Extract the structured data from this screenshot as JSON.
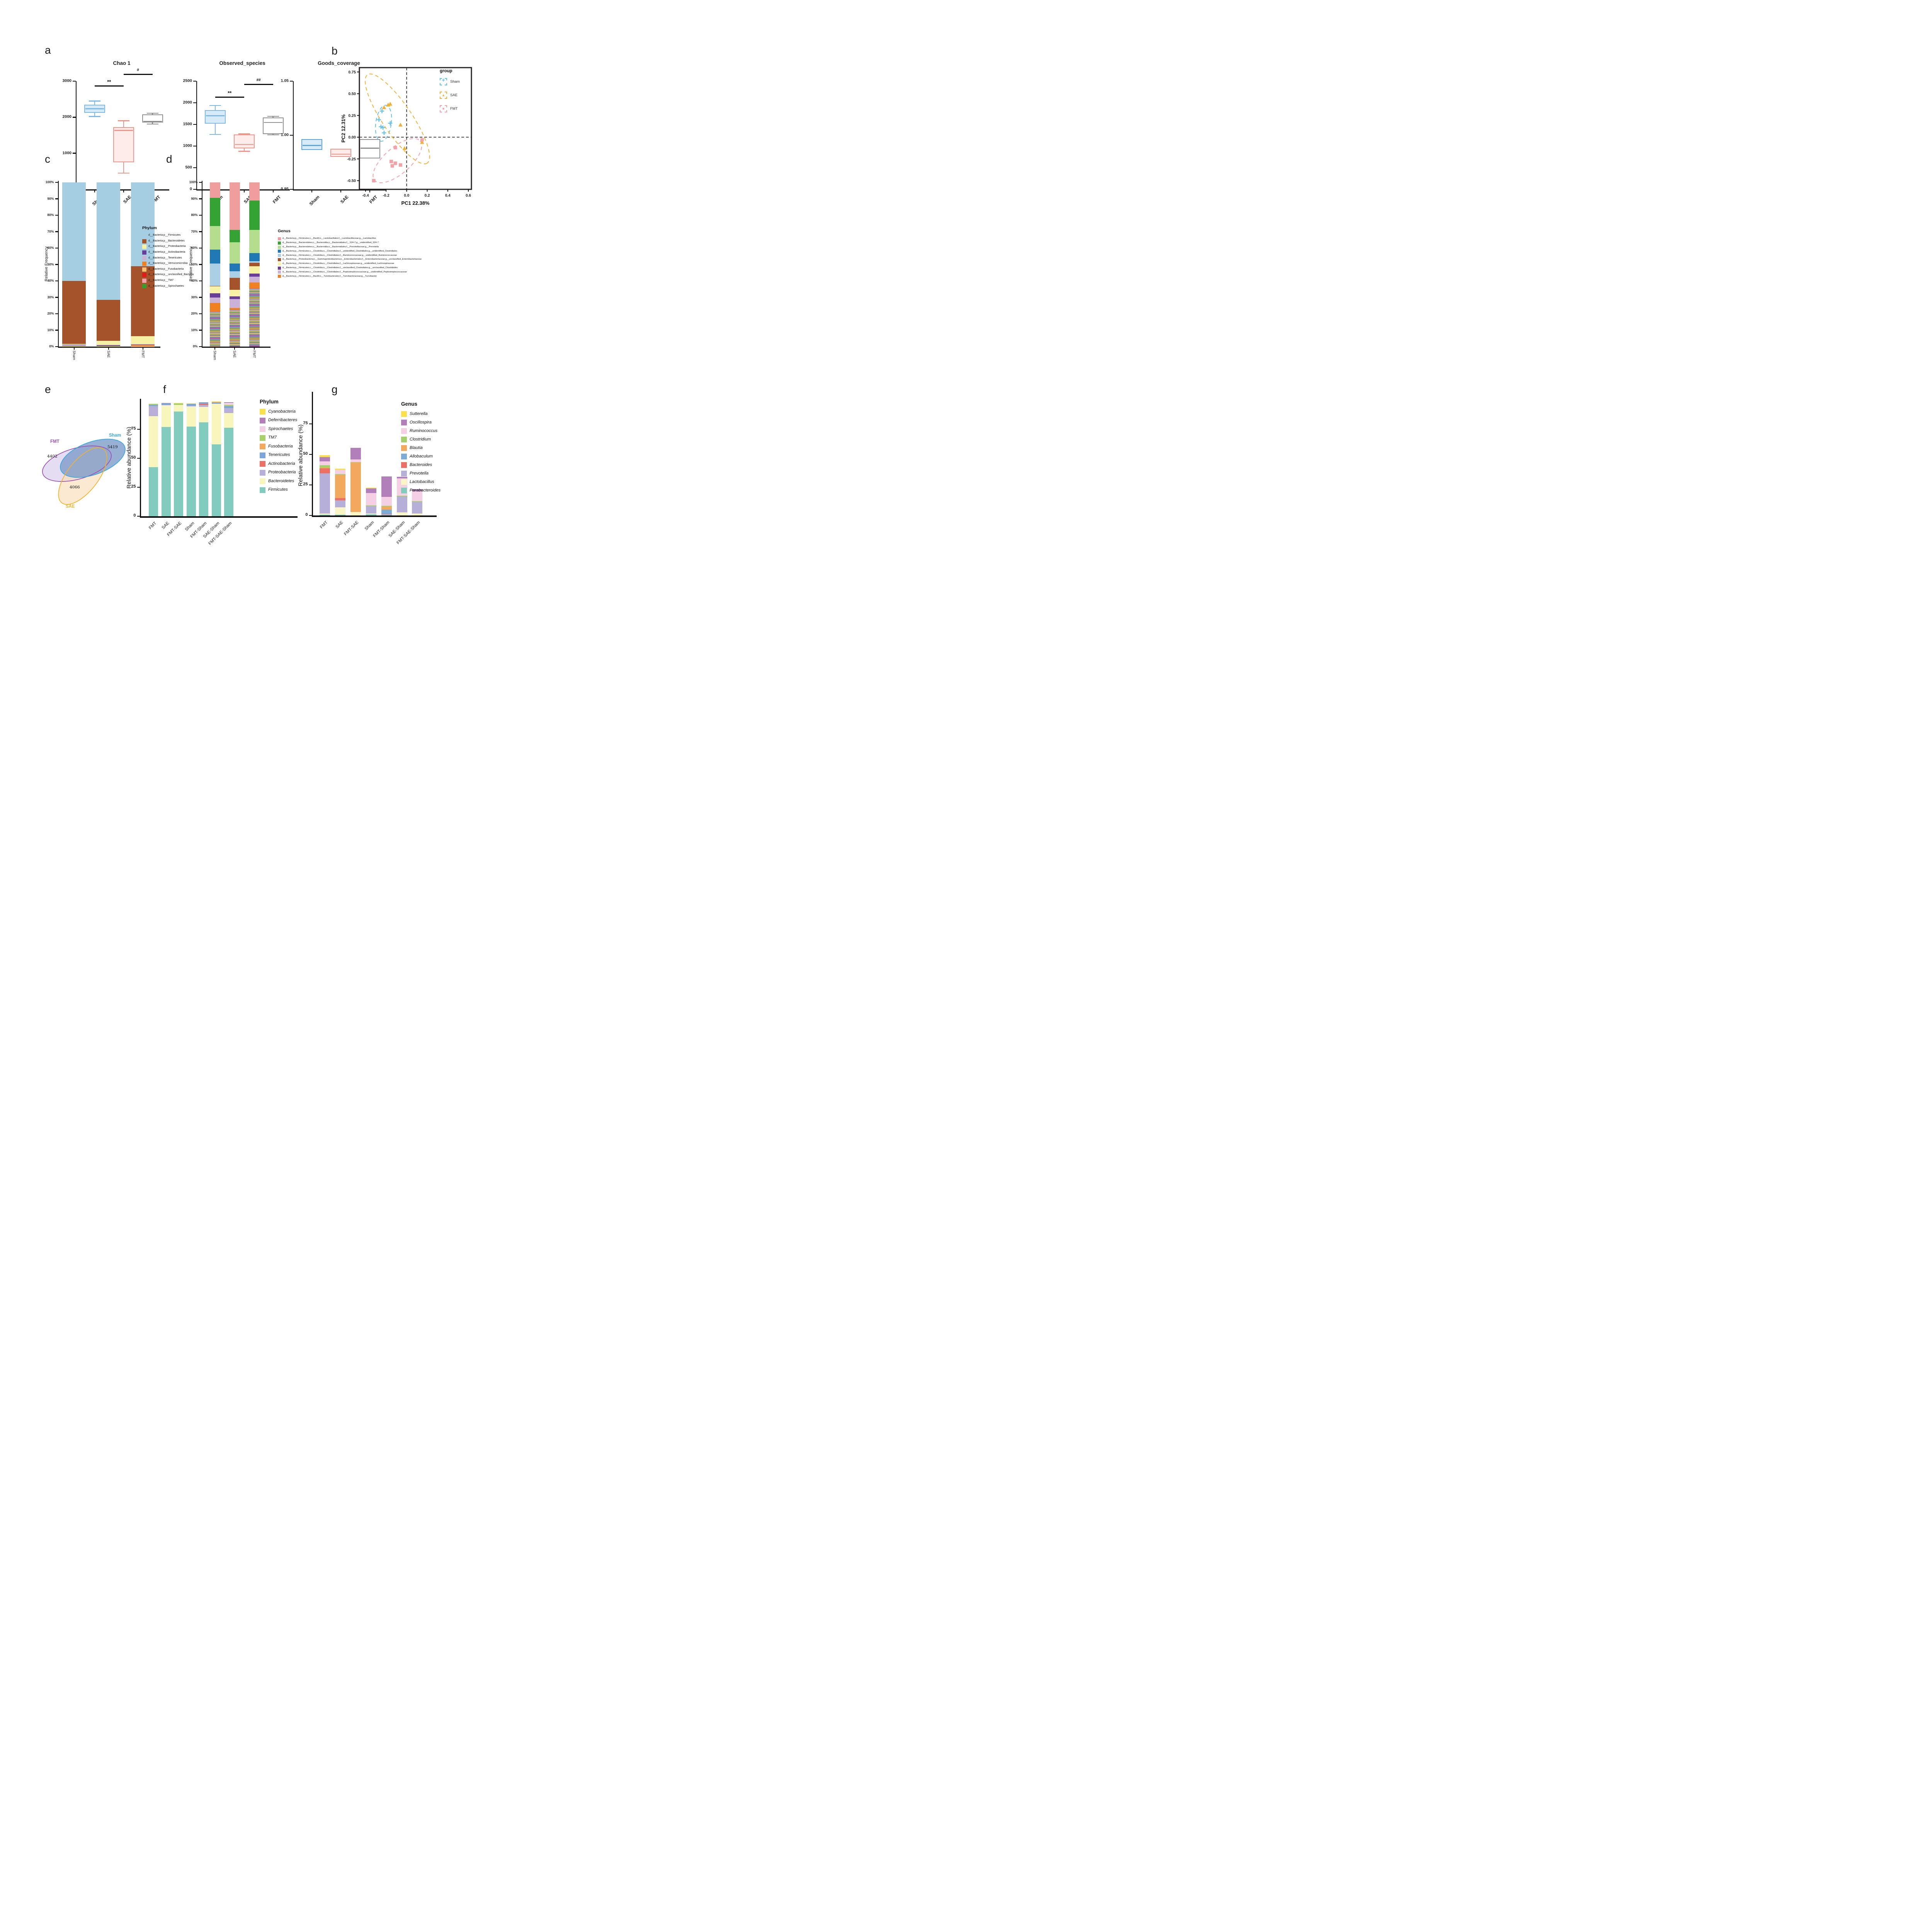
{
  "figure": {
    "panel_letters": {
      "a": "a",
      "b": "b",
      "c": "c",
      "d": "d",
      "e": "e",
      "f": "f",
      "g": "g"
    }
  },
  "chart_data": [
    {
      "id": "chao1",
      "type": "box",
      "title": "Chao 1",
      "categories": [
        "Sham",
        "SAE",
        "FMT"
      ],
      "ylim": [
        0,
        3000
      ],
      "yticks": [
        0,
        1000,
        2000,
        3000
      ],
      "ytick_decimals": 0,
      "groups": [
        {
          "name": "Sham",
          "stroke": "#7cb9e8",
          "fill": "#d6eaf8",
          "whisker_low": 2020,
          "q1": 2120,
          "median": 2230,
          "q3": 2350,
          "whisker_high": 2450
        },
        {
          "name": "SAE",
          "stroke": "#f1948a",
          "fill": "#fdecea",
          "whisker_low": 450,
          "q1": 750,
          "median": 1630,
          "q3": 1720,
          "whisker_high": 1900
        },
        {
          "name": "FMT",
          "stroke": "#8f8f8f",
          "fill": "#ffffff",
          "whisker_low": 1810,
          "q1": 1850,
          "median": 1880,
          "q3": 2080,
          "whisker_high": 2110
        }
      ],
      "significance": [
        {
          "from": 0,
          "to": 1,
          "y": 2880,
          "label": "**"
        },
        {
          "from": 1,
          "to": 2,
          "y": 3200,
          "label": "#"
        }
      ]
    },
    {
      "id": "observed_species",
      "type": "box",
      "title": "Observed_species",
      "categories": [
        "Sham",
        "SAE",
        "FMT"
      ],
      "ylim": [
        0,
        2500
      ],
      "yticks": [
        0,
        500,
        1000,
        1500,
        2000,
        2500
      ],
      "ytick_decimals": 0,
      "groups": [
        {
          "name": "Sham",
          "stroke": "#7cb9e8",
          "fill": "#d6eaf8",
          "whisker_low": 1270,
          "q1": 1520,
          "median": 1700,
          "q3": 1830,
          "whisker_high": 1935
        },
        {
          "name": "SAE",
          "stroke": "#f1948a",
          "fill": "#fdecea",
          "whisker_low": 880,
          "q1": 950,
          "median": 1035,
          "q3": 1265,
          "whisker_high": 1280
        },
        {
          "name": "FMT",
          "stroke": "#8f8f8f",
          "fill": "#ffffff",
          "whisker_low": 1260,
          "q1": 1275,
          "median": 1545,
          "q3": 1660,
          "whisker_high": 1685
        }
      ],
      "significance": [
        {
          "from": 0,
          "to": 1,
          "y": 2140,
          "label": "**"
        },
        {
          "from": 1,
          "to": 2,
          "y": 2440,
          "label": "##"
        }
      ]
    },
    {
      "id": "goods_coverage",
      "type": "box",
      "title": "Goods_coverage",
      "categories": [
        "Sham",
        "SAE",
        "FMT"
      ],
      "ylim": [
        0.95,
        1.05
      ],
      "yticks": [
        0.95,
        1.0,
        1.05
      ],
      "ytick_decimals": 2,
      "groups": [
        {
          "name": "Sham",
          "stroke": "#5da4dc",
          "fill": "#d6eaf8",
          "whisker_low": 0.9865,
          "q1": 0.9865,
          "median": 0.9905,
          "q3": 0.9965,
          "whisker_high": 0.9965
        },
        {
          "name": "SAE",
          "stroke": "#f1948a",
          "fill": "#fdecea",
          "whisker_low": 0.98,
          "q1": 0.98,
          "median": 0.9825,
          "q3": 0.9875,
          "whisker_high": 0.9875
        },
        {
          "name": "FMT",
          "stroke": "#8f8f8f",
          "fill": "#ffffff",
          "whisker_low": 0.9785,
          "q1": 0.9785,
          "median": 0.988,
          "q3": 0.9965,
          "whisker_high": 0.9965
        }
      ],
      "significance": []
    },
    {
      "id": "pca",
      "type": "scatter",
      "xlabel": "PC1 22.38%",
      "ylabel": "PC2 12.31%",
      "legend_title": "group",
      "xlim": [
        -0.46,
        0.63
      ],
      "ylim": [
        -0.6,
        0.8
      ],
      "xticks": [
        -0.4,
        -0.2,
        0.0,
        0.2,
        0.4,
        0.6
      ],
      "yticks": [
        -0.5,
        -0.25,
        0.0,
        0.25,
        0.5,
        0.75
      ],
      "series": [
        {
          "name": "Sham",
          "color": "#63c1e8",
          "symbol": "cross",
          "points": [
            [
              -0.24,
              0.3
            ],
            [
              -0.27,
              0.2
            ],
            [
              -0.25,
              0.12
            ],
            [
              -0.23,
              0.11
            ],
            [
              -0.16,
              0.16
            ],
            [
              -0.22,
              0.05
            ]
          ],
          "ellipse": {
            "cx": -0.225,
            "cy": 0.16,
            "rx": 20,
            "ry": 47,
            "rot": 8
          }
        },
        {
          "name": "SAE",
          "color": "#f0b13a",
          "symbol": "triangle",
          "points": [
            [
              -0.22,
              0.34
            ],
            [
              -0.18,
              0.37
            ],
            [
              -0.16,
              0.38
            ],
            [
              -0.06,
              0.14
            ],
            [
              0.15,
              -0.06
            ],
            [
              -0.02,
              -0.13
            ]
          ],
          "ellipse": {
            "cx": -0.09,
            "cy": 0.21,
            "rx": 138,
            "ry": 38,
            "rot": 56
          }
        },
        {
          "name": "FMT",
          "color": "#f2a3a8",
          "symbol": "square",
          "points": [
            [
              0.15,
              -0.03
            ],
            [
              -0.11,
              -0.12
            ],
            [
              -0.15,
              -0.28
            ],
            [
              -0.11,
              -0.3
            ],
            [
              -0.14,
              -0.33
            ],
            [
              -0.06,
              -0.32
            ],
            [
              -0.32,
              -0.5
            ]
          ],
          "ellipse": {
            "cx": -0.09,
            "cy": -0.27,
            "rx": 78,
            "ry": 34,
            "rot": -41
          }
        }
      ]
    },
    {
      "id": "phylum_freq",
      "type": "bar_stacked",
      "ylabel": "Relative Frequency",
      "legend_title": "Phylum",
      "categories": [
        "Sham",
        "SAE",
        "FMT"
      ],
      "ylim": [
        0,
        100
      ],
      "yticks": [
        0,
        10,
        20,
        30,
        40,
        50,
        60,
        70,
        80,
        90,
        100
      ],
      "ytick_suffix": "%",
      "series": [
        {
          "name": "d__Bacteria;p__Firmicutes",
          "color": "#a6cee3",
          "values": [
            60,
            71.5,
            51
          ]
        },
        {
          "name": "d__Bacteria;p__Bacteroidetes",
          "color": "#a5532b",
          "values": [
            38.3,
            24.9,
            42.6
          ]
        },
        {
          "name": "d__Bacteria;p__Proteobacteria",
          "color": "#f7f1a3",
          "values": [
            0.5,
            2.6,
            4.9
          ]
        },
        {
          "name": "d__Bacteria;p__Actinobacteria",
          "color": "#6a3d9a",
          "values": [
            0.3,
            0.6,
            0.3
          ]
        },
        {
          "name": "d__Bacteria;p__Tenericutes",
          "color": "#cab2d6",
          "values": [
            0.55,
            0.05,
            0.3
          ]
        },
        {
          "name": "d__Bacteria;p__Verrucomicrobia",
          "color": "#ef8122",
          "values": [
            0.02,
            0.02,
            0.6
          ]
        },
        {
          "name": "d__Bacteria;p__Fusobacteria",
          "color": "#fdbf6f",
          "values": [
            0.02,
            0.02,
            0.05
          ]
        },
        {
          "name": "d__Bacteria;p__unclassified_Bacteria",
          "color": "#e31a1c",
          "values": [
            0.1,
            0.15,
            0.2
          ]
        },
        {
          "name": "d__Bacteria;p__TM7",
          "color": "#f2a0a8",
          "values": [
            0.11,
            0.1,
            0.02
          ]
        },
        {
          "name": "d__Bacteria;p__Spirochaetes",
          "color": "#33a02c",
          "values": [
            0.1,
            0.06,
            0.03
          ]
        }
      ]
    },
    {
      "id": "genus_freq",
      "type": "bar_stacked",
      "ylabel": "Relative Frequency",
      "legend_title": "Genus",
      "categories": [
        "Sham",
        "SAE",
        "FMT"
      ],
      "ylim": [
        0,
        100
      ],
      "yticks": [
        0,
        10,
        20,
        30,
        40,
        50,
        60,
        70,
        80,
        90,
        100
      ],
      "ytick_suffix": "%",
      "series": [
        {
          "name": "d__Bacteria;p__Firmicutes;c__Bacilli;o__Lactobacillales;f__Lactobacillaceae;g__Lactobacillus",
          "color": "#ef9d9d",
          "values": [
            9.5,
            29,
            11
          ]
        },
        {
          "name": "d__Bacteria;p__Bacteroidetes;c__Bacteroidia;o__Bacteroidales;f__S24-7;g__unidentified_S24-7",
          "color": "#35a234",
          "values": [
            17,
            7.5,
            18
          ]
        },
        {
          "name": "d__Bacteria;p__Bacteroidetes;c__Bacteroidia;o__Bacteroidales;f__Prevotellaceae;g__Prevotella",
          "color": "#b4de8d",
          "values": [
            14.5,
            13,
            14
          ]
        },
        {
          "name": "d__Bacteria;p__Firmicutes;c__Clostridia;o__Clostridiales;f__unidentified_Clostridiales;g__unidentified_Clostridiales",
          "color": "#2079b4",
          "values": [
            8.5,
            4.5,
            5
          ]
        },
        {
          "name": "d__Bacteria;p__Firmicutes;c__Clostridia;o__Clostridiales;f__Ruminococcaceae;g__unidentified_Ruminococcaceae",
          "color": "#abd0e6",
          "values": [
            13.5,
            4,
            1
          ]
        },
        {
          "name": "d__Bacteria;p__Proteobacteria;c__Gammaproteobacteria;o__Enterobacteriales;f__Enterobacteriaceae;g__unclassified_Enterobacteriaceae",
          "color": "#a5532b",
          "values": [
            0.3,
            7.5,
            2
          ]
        },
        {
          "name": "d__Bacteria;p__Firmicutes;c__Clostridia;o__Clostridiales;f__Lachnospiraceae;g__unidentified_Lachnospiraceae",
          "color": "#f7f1a3",
          "values": [
            4.3,
            4,
            4.5
          ]
        },
        {
          "name": "d__Bacteria;p__Firmicutes;c__Clostridia;o__Clostridiales;f__unclassified_Clostridiales;g__unclassified_Clostridiales",
          "color": "#6a3d9a",
          "values": [
            2.5,
            1.5,
            2
          ]
        },
        {
          "name": "d__Bacteria;p__Firmicutes;c__Clostridia;o__Clostridiales;f__Peptostreptococcaceae;g__unidentified_Peptostreptococcaceae",
          "color": "#cab2d6",
          "values": [
            3.4,
            5.5,
            3.5
          ]
        },
        {
          "name": "d__Bacteria;p__Firmicutes;c__Bacilli;o__Turicibacterales;f__Turicibacteraceae;g__Turicibacter",
          "color": "#ef8122",
          "values": [
            5,
            0.8,
            3.5
          ]
        },
        {
          "name": "minor_genera_aggregate",
          "color": "pattern",
          "legend": false,
          "values": [
            21.5,
            22.7,
            35.5
          ]
        }
      ],
      "others_palette": [
        "#e3735b",
        "#7bb8d9",
        "#f2a44e",
        "#66b266",
        "#b07aa8",
        "#e8c84d",
        "#4a90c2",
        "#d95f8a",
        "#8a6bbf",
        "#5bbfa8",
        "#c9763a",
        "#97c964"
      ]
    },
    {
      "id": "venn",
      "type": "venn",
      "sets": [
        {
          "name": "FMT",
          "count": "4402",
          "color": "#9a52b5",
          "fill": "#e2d9f0"
        },
        {
          "name": "Sham",
          "count": "5419",
          "color": "#3aa7e0",
          "fill": "#7e9cc9"
        },
        {
          "name": "SAE",
          "count": "4066",
          "color": "#f0b429",
          "fill": "#f9ddba"
        }
      ]
    },
    {
      "id": "phylum_abundance",
      "type": "bar_stacked",
      "ylabel": "Relative abundance (%)",
      "legend_title": "Phylum",
      "categories": [
        "FMT",
        "SAE",
        "FMT-SAE",
        "Sham",
        "FMT-Sham",
        "SAE-Sham",
        "FMT-SAE-Sham"
      ],
      "ylim": [
        0,
        100
      ],
      "yticks": [
        0,
        25,
        50,
        75
      ],
      "ytick_suffix": "",
      "legend_italic": true,
      "series": [
        {
          "name": "Cyanobacteria",
          "color": "#f9e14b",
          "values": [
            0,
            0,
            0.2,
            0.2,
            0,
            0.3,
            0
          ]
        },
        {
          "name": "Deferribacteres",
          "color": "#b27fb8",
          "values": [
            0,
            0.2,
            0,
            0,
            0,
            0,
            0.7
          ]
        },
        {
          "name": "Spirochaetes",
          "color": "#f3cfe5",
          "values": [
            0,
            0,
            0,
            0,
            0,
            0,
            1.5
          ]
        },
        {
          "name": "TM7",
          "color": "#a9d16a",
          "values": [
            1,
            0,
            1.5,
            0,
            0,
            0,
            1
          ]
        },
        {
          "name": "Fusobacteria",
          "color": "#f2a95e",
          "values": [
            0,
            0,
            0,
            0,
            0,
            0.6,
            0
          ]
        },
        {
          "name": "Tenericutes",
          "color": "#7da7d8",
          "values": [
            1,
            1.5,
            0,
            2,
            1.5,
            1,
            1.5
          ]
        },
        {
          "name": "Actinobacteria",
          "color": "#ec7063",
          "values": [
            0,
            0,
            0,
            0,
            1,
            0,
            0
          ]
        },
        {
          "name": "Proteobacteria",
          "color": "#b8b0d8",
          "values": [
            8.5,
            0.6,
            0,
            0.8,
            1.5,
            0,
            4.5
          ]
        },
        {
          "name": "Bacteroidetes",
          "color": "#f9f6bd",
          "values": [
            44,
            18.5,
            5.5,
            17,
            13.5,
            35,
            12.5
          ]
        },
        {
          "name": "Firmicutes",
          "color": "#82cbbf",
          "values": [
            42.5,
            77,
            90.5,
            77.5,
            81,
            62,
            76.5
          ]
        }
      ]
    },
    {
      "id": "genus_abundance",
      "type": "bar_stacked",
      "ylabel": "Relative abundance (%)",
      "legend_title": "Genus",
      "categories": [
        "FMT",
        "SAE",
        "FMT-SAE",
        "Sham",
        "FMT-Sham",
        "SAE-Sham",
        "FMT-SAE-Sham"
      ],
      "ylim": [
        0,
        100
      ],
      "yticks": [
        0,
        25,
        50,
        75
      ],
      "ytick_suffix": "",
      "legend_italic": true,
      "series": [
        {
          "name": "Sutterella",
          "color": "#f9e14b",
          "values": [
            1.7,
            0.8,
            0,
            0.7,
            0,
            0,
            0
          ]
        },
        {
          "name": "Oscillospira",
          "color": "#b37fbb",
          "values": [
            3.6,
            0,
            9.7,
            3.5,
            16.7,
            1,
            1.5
          ]
        },
        {
          "name": "Ruminococcus",
          "color": "#f5d0e5",
          "values": [
            3,
            3.5,
            2,
            10.3,
            7.5,
            14.5,
            8.4
          ]
        },
        {
          "name": "Clostridium",
          "color": "#a5cf6b",
          "values": [
            2,
            0.7,
            0.3,
            0.7,
            0.5,
            0.5,
            0.6
          ]
        },
        {
          "name": "Blautia",
          "color": "#f2a95e",
          "values": [
            0.7,
            19,
            40.5,
            0,
            2.5,
            0,
            0
          ]
        },
        {
          "name": "Allobaculum",
          "color": "#7cabd6",
          "values": [
            0,
            0,
            0,
            0,
            3.5,
            0,
            0
          ]
        },
        {
          "name": "Bacteroides",
          "color": "#ec7063",
          "values": [
            4,
            2,
            0,
            0,
            0.3,
            0,
            0
          ]
        },
        {
          "name": "Prevotella",
          "color": "#b6afd8",
          "values": [
            33,
            5.5,
            0,
            6,
            0.7,
            13,
            9.5
          ]
        },
        {
          "name": "Lactobacillus",
          "color": "#faf5c4",
          "values": [
            0.8,
            6,
            3,
            0.7,
            0,
            2.5,
            1.5
          ]
        },
        {
          "name": "Parabacteroides",
          "color": "#82cbbf",
          "values": [
            0.7,
            0.7,
            0,
            0.8,
            0.3,
            0,
            0
          ]
        }
      ]
    }
  ]
}
